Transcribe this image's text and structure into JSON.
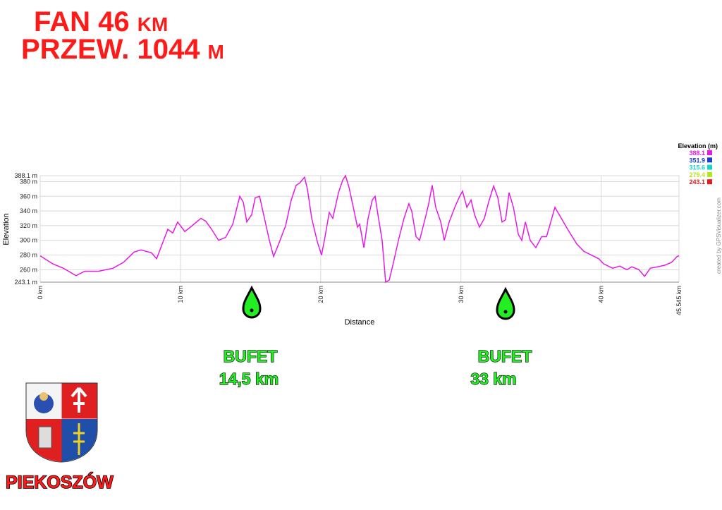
{
  "header": {
    "title": "FAN 46 km",
    "subtitle": "PRZEW. 1044 m"
  },
  "bufets": [
    {
      "label": "BUFET",
      "distance": "14,5 km"
    },
    {
      "label": "BUFET",
      "distance": "33 km"
    }
  ],
  "footer": "PIEKOSZÓW",
  "credit": "created by GPSVisualizer.com",
  "chart_data": {
    "type": "line",
    "x_label": "Distance",
    "y_label": "Elevation",
    "x": [
      0,
      0.9,
      1.66,
      2.56,
      3.17,
      4.17,
      5.18,
      5.93,
      6.69,
      7.19,
      7.94,
      8.3,
      8.8,
      9.1,
      9.45,
      9.8,
      10.31,
      10.71,
      11.46,
      11.81,
      12.22,
      12.72,
      13.22,
      13.73,
      14.23,
      14.48,
      14.73,
      15.08,
      15.33,
      15.64,
      15.99,
      16.34,
      16.64,
      17,
      17.5,
      17.9,
      18.25,
      18.5,
      18.85,
      19.05,
      19.36,
      19.76,
      20.06,
      20.31,
      20.61,
      20.86,
      21.27,
      21.57,
      21.77,
      22.02,
      22.27,
      22.62,
      22.78,
      23.08,
      23.38,
      23.68,
      23.88,
      24.08,
      24.38,
      24.63,
      24.89,
      25.19,
      25.54,
      25.94,
      26.29,
      26.49,
      26.8,
      27.05,
      27.45,
      27.7,
      27.95,
      28.2,
      28.56,
      28.81,
      29.16,
      29.56,
      29.91,
      30.11,
      30.42,
      30.72,
      30.97,
      31.32,
      31.67,
      31.97,
      32.33,
      32.63,
      32.93,
      33.18,
      33.43,
      33.74,
      34.09,
      34.34,
      34.59,
      34.94,
      35.34,
      35.75,
      36.1,
      36.7,
      37,
      37.61,
      38.26,
      38.77,
      39.82,
      40.17,
      40.82,
      41.32,
      41.83,
      42.18,
      42.69,
      43.09,
      43.5,
      44.01,
      44.51,
      45.01,
      45.41,
      45.545
    ],
    "values": [
      279,
      268,
      262,
      252,
      258,
      258,
      262,
      270,
      284,
      287,
      283,
      275,
      300,
      315,
      310,
      325,
      312,
      318,
      330,
      326,
      315,
      300,
      304,
      322,
      360,
      352,
      325,
      335,
      358,
      360,
      330,
      300,
      278,
      295,
      320,
      355,
      375,
      378,
      386,
      370,
      330,
      298,
      280,
      305,
      338,
      330,
      365,
      382,
      388.1,
      372,
      350,
      318,
      322,
      290,
      330,
      355,
      360,
      335,
      300,
      243.1,
      246,
      270,
      300,
      330,
      350,
      340,
      305,
      300,
      330,
      350,
      375,
      345,
      325,
      300,
      325,
      345,
      360,
      367,
      345,
      355,
      335,
      318,
      330,
      352,
      374,
      358,
      325,
      328,
      365,
      345,
      308,
      300,
      325,
      300,
      290,
      305,
      305,
      345,
      335,
      315,
      295,
      285,
      275,
      268,
      262,
      265,
      260,
      264,
      260,
      251,
      262,
      264,
      266,
      270,
      278,
      279
    ],
    "xlim": [
      0,
      45.545
    ],
    "ylim": [
      243.1,
      388.1
    ],
    "xticks": [
      {
        "value": 0,
        "label": "0 km"
      },
      {
        "value": 10,
        "label": "10 km"
      },
      {
        "value": 20,
        "label": "20 km"
      },
      {
        "value": 30,
        "label": "30 km"
      },
      {
        "value": 40,
        "label": "40 km"
      },
      {
        "value": 45.545,
        "label": "45.545 km"
      }
    ],
    "yticks": [
      {
        "value": 243.1,
        "label": "243.1 m"
      },
      {
        "value": 260,
        "label": "260 m"
      },
      {
        "value": 280,
        "label": "280 m"
      },
      {
        "value": 300,
        "label": "300 m"
      },
      {
        "value": 320,
        "label": "320 m"
      },
      {
        "value": 340,
        "label": "340 m"
      },
      {
        "value": 360,
        "label": "360 m"
      },
      {
        "value": 380,
        "label": "380 m"
      },
      {
        "value": 388.1,
        "label": "388.1 m"
      }
    ],
    "grid": true,
    "color_scale": {
      "title": "Elevation (m)",
      "stops": [
        {
          "value": 388.1,
          "color": "#e619e6"
        },
        {
          "value": 351.9,
          "color": "#1a3fd6"
        },
        {
          "value": 315.6,
          "color": "#19d6c4"
        },
        {
          "value": 279.4,
          "color": "#b5e619"
        },
        {
          "value": 243.1,
          "color": "#e61a1a"
        }
      ]
    }
  }
}
